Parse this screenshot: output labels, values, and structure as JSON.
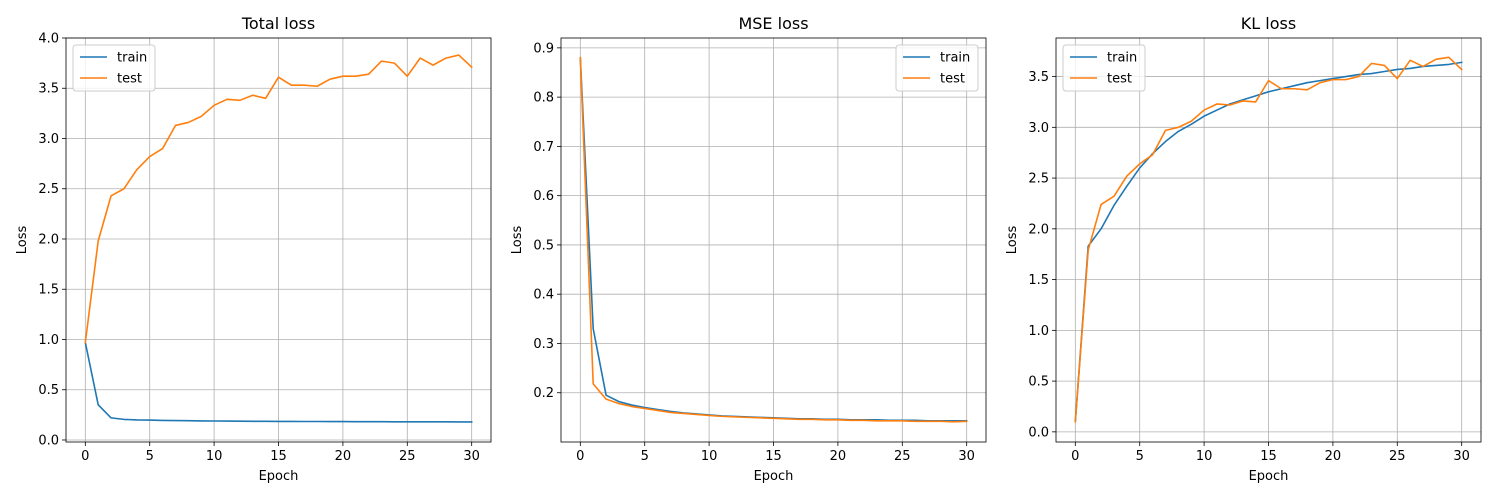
{
  "colors": {
    "train": "#1f77b4",
    "test": "#ff7f0e",
    "grid": "#b0b0b0"
  },
  "chart_data": [
    {
      "type": "line",
      "title": "Total loss",
      "xlabel": "Epoch",
      "ylabel": "Loss",
      "xlim": [
        -1.5,
        31.5
      ],
      "ylim": [
        -0.02,
        4.0
      ],
      "xticks": [
        0,
        5,
        10,
        15,
        20,
        25,
        30
      ],
      "yticks": [
        0.0,
        0.5,
        1.0,
        1.5,
        2.0,
        2.5,
        3.0,
        3.5,
        4.0
      ],
      "ytick_labels": [
        "0.0",
        "0.5",
        "1.0",
        "1.5",
        "2.0",
        "2.5",
        "3.0",
        "3.5",
        "4.0"
      ],
      "grid": true,
      "legend_position": "top-left",
      "x": [
        0,
        1,
        2,
        3,
        4,
        5,
        6,
        7,
        8,
        9,
        10,
        11,
        12,
        13,
        14,
        15,
        16,
        17,
        18,
        19,
        20,
        21,
        22,
        23,
        24,
        25,
        26,
        27,
        28,
        29,
        30
      ],
      "series": [
        {
          "name": "train",
          "color": "#1f77b4",
          "values": [
            0.97,
            0.35,
            0.22,
            0.205,
            0.2,
            0.198,
            0.195,
            0.193,
            0.192,
            0.19,
            0.189,
            0.188,
            0.187,
            0.186,
            0.186,
            0.185,
            0.185,
            0.184,
            0.184,
            0.183,
            0.183,
            0.182,
            0.182,
            0.182,
            0.181,
            0.181,
            0.181,
            0.181,
            0.181,
            0.18,
            0.18
          ]
        },
        {
          "name": "test",
          "color": "#ff7f0e",
          "values": [
            0.97,
            1.98,
            2.43,
            2.5,
            2.69,
            2.82,
            2.9,
            3.13,
            3.16,
            3.22,
            3.33,
            3.39,
            3.38,
            3.43,
            3.4,
            3.61,
            3.53,
            3.53,
            3.52,
            3.59,
            3.62,
            3.62,
            3.64,
            3.77,
            3.75,
            3.62,
            3.8,
            3.73,
            3.8,
            3.83,
            3.71
          ]
        }
      ]
    },
    {
      "type": "line",
      "title": "MSE loss",
      "xlabel": "Epoch",
      "ylabel": "Loss",
      "xlim": [
        -1.5,
        31.5
      ],
      "ylim": [
        0.1,
        0.92
      ],
      "xticks": [
        0,
        5,
        10,
        15,
        20,
        25,
        30
      ],
      "yticks": [
        0.2,
        0.3,
        0.4,
        0.5,
        0.6,
        0.7,
        0.8,
        0.9
      ],
      "ytick_labels": [
        "0.2",
        "0.3",
        "0.4",
        "0.5",
        "0.6",
        "0.7",
        "0.8",
        "0.9"
      ],
      "grid": true,
      "legend_position": "top-right",
      "x": [
        0,
        1,
        2,
        3,
        4,
        5,
        6,
        7,
        8,
        9,
        10,
        11,
        12,
        13,
        14,
        15,
        16,
        17,
        18,
        19,
        20,
        21,
        22,
        23,
        24,
        25,
        26,
        27,
        28,
        29,
        30
      ],
      "series": [
        {
          "name": "train",
          "color": "#1f77b4",
          "values": [
            0.88,
            0.33,
            0.195,
            0.182,
            0.175,
            0.17,
            0.166,
            0.162,
            0.159,
            0.157,
            0.155,
            0.153,
            0.152,
            0.151,
            0.15,
            0.149,
            0.148,
            0.147,
            0.147,
            0.146,
            0.146,
            0.145,
            0.145,
            0.145,
            0.144,
            0.144,
            0.144,
            0.143,
            0.143,
            0.143,
            0.143
          ]
        },
        {
          "name": "test",
          "color": "#ff7f0e",
          "values": [
            0.88,
            0.218,
            0.187,
            0.178,
            0.172,
            0.168,
            0.164,
            0.16,
            0.158,
            0.156,
            0.154,
            0.152,
            0.151,
            0.15,
            0.149,
            0.148,
            0.147,
            0.146,
            0.146,
            0.145,
            0.145,
            0.144,
            0.144,
            0.143,
            0.143,
            0.143,
            0.142,
            0.142,
            0.142,
            0.141,
            0.142
          ]
        }
      ]
    },
    {
      "type": "line",
      "title": "KL loss",
      "xlabel": "Epoch",
      "ylabel": "Loss",
      "xlim": [
        -1.5,
        31.5
      ],
      "ylim": [
        -0.1,
        3.88
      ],
      "xticks": [
        0,
        5,
        10,
        15,
        20,
        25,
        30
      ],
      "yticks": [
        0.0,
        0.5,
        1.0,
        1.5,
        2.0,
        2.5,
        3.0,
        3.5
      ],
      "ytick_labels": [
        "0.0",
        "0.5",
        "1.0",
        "1.5",
        "2.0",
        "2.5",
        "3.0",
        "3.5"
      ],
      "grid": true,
      "legend_position": "top-left",
      "x": [
        0,
        1,
        2,
        3,
        4,
        5,
        6,
        7,
        8,
        9,
        10,
        11,
        12,
        13,
        14,
        15,
        16,
        17,
        18,
        19,
        20,
        21,
        22,
        23,
        24,
        25,
        26,
        27,
        28,
        29,
        30
      ],
      "series": [
        {
          "name": "train",
          "color": "#1f77b4",
          "values": [
            0.1,
            1.83,
            2.0,
            2.23,
            2.42,
            2.6,
            2.74,
            2.86,
            2.96,
            3.03,
            3.11,
            3.17,
            3.23,
            3.27,
            3.31,
            3.35,
            3.38,
            3.41,
            3.44,
            3.46,
            3.48,
            3.5,
            3.52,
            3.53,
            3.55,
            3.57,
            3.58,
            3.6,
            3.61,
            3.62,
            3.64
          ]
        },
        {
          "name": "test",
          "color": "#ff7f0e",
          "values": [
            0.1,
            1.79,
            2.24,
            2.32,
            2.52,
            2.64,
            2.73,
            2.97,
            3.0,
            3.06,
            3.17,
            3.23,
            3.22,
            3.26,
            3.25,
            3.46,
            3.38,
            3.38,
            3.37,
            3.44,
            3.47,
            3.47,
            3.5,
            3.63,
            3.61,
            3.48,
            3.66,
            3.6,
            3.67,
            3.69,
            3.57
          ]
        }
      ]
    }
  ]
}
